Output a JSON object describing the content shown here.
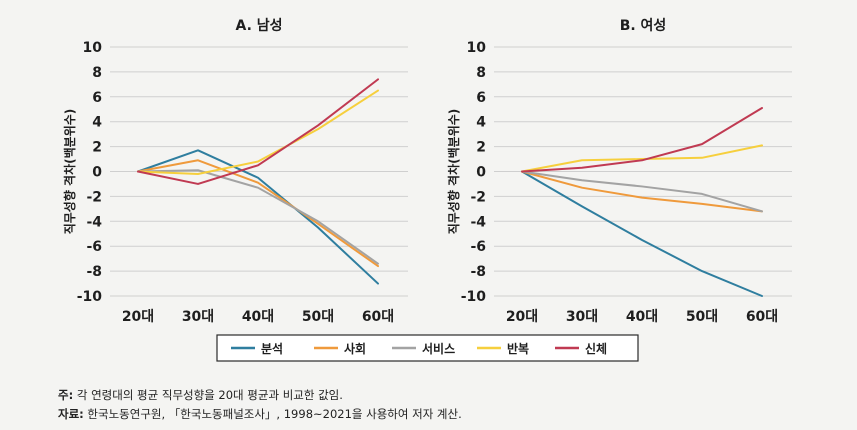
{
  "colors": {
    "분석": "#2f7e9f",
    "사회": "#ef9a3c",
    "서비스": "#a3a3a3",
    "반복": "#f6cf3d",
    "신체": "#c03a52"
  },
  "legend": [
    "분석",
    "사회",
    "서비스",
    "반복",
    "신체"
  ],
  "chart_data": [
    {
      "type": "line",
      "title": "A. 남성",
      "ylabel": "직무성향 격차(백분위수)",
      "xlabel": "",
      "categories": [
        "20대",
        "30대",
        "40대",
        "50대",
        "60대"
      ],
      "ylim": [
        -10,
        10
      ],
      "yticks": [
        "10",
        "8",
        "6",
        "4",
        "2",
        "0",
        "-2",
        "-4",
        "-6",
        "-8",
        "-10"
      ],
      "grid": true,
      "series": [
        {
          "name": "분석",
          "values": [
            0,
            1.7,
            -0.5,
            -4.5,
            -9.0
          ]
        },
        {
          "name": "사회",
          "values": [
            0,
            0.9,
            -0.9,
            -4.2,
            -7.6
          ]
        },
        {
          "name": "서비스",
          "values": [
            0,
            0.1,
            -1.3,
            -4.0,
            -7.4
          ]
        },
        {
          "name": "반복",
          "values": [
            0,
            -0.2,
            0.8,
            3.4,
            6.5
          ]
        },
        {
          "name": "신체",
          "values": [
            0,
            -1.0,
            0.5,
            3.7,
            7.4
          ]
        }
      ]
    },
    {
      "type": "line",
      "title": "B. 여성",
      "ylabel": "직무성향 격차(백분위수)",
      "xlabel": "",
      "categories": [
        "20대",
        "30대",
        "40대",
        "50대",
        "60대"
      ],
      "ylim": [
        -10,
        10
      ],
      "yticks": [
        "10",
        "8",
        "6",
        "4",
        "2",
        "0",
        "-2",
        "-4",
        "-6",
        "-8",
        "-10"
      ],
      "grid": true,
      "series": [
        {
          "name": "분석",
          "values": [
            0,
            -2.8,
            -5.5,
            -8.0,
            -10.0
          ]
        },
        {
          "name": "사회",
          "values": [
            0,
            -1.3,
            -2.1,
            -2.6,
            -3.2
          ]
        },
        {
          "name": "서비스",
          "values": [
            0,
            -0.7,
            -1.2,
            -1.8,
            -3.2
          ]
        },
        {
          "name": "반복",
          "values": [
            0,
            0.9,
            1.0,
            1.1,
            2.1
          ]
        },
        {
          "name": "신체",
          "values": [
            0,
            0.3,
            0.9,
            2.2,
            5.1
          ]
        }
      ]
    }
  ],
  "notes": {
    "note_label": "주:",
    "note_text": " 각 연령대의 평균 직무성향을 20대 평균과 비교한 값임.",
    "source_label": "자료:",
    "source_text": " 한국노동연구원, 「한국노동패널조사」, 1998~2021을 사용하여 저자 계산."
  }
}
